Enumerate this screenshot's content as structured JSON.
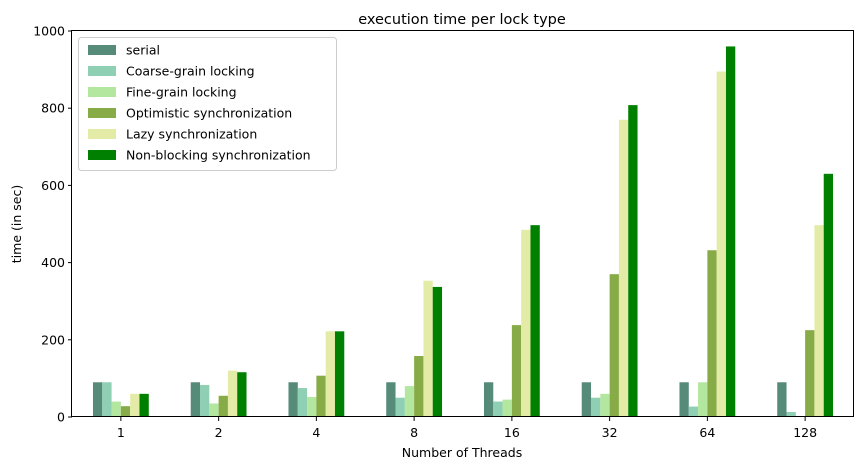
{
  "chart_data": {
    "type": "bar",
    "title": "execution time per lock type",
    "xlabel": "Number of Threads",
    "ylabel": "time (in sec)",
    "categories": [
      "1",
      "2",
      "4",
      "8",
      "16",
      "32",
      "64",
      "128"
    ],
    "ylim": [
      0,
      1000
    ],
    "yticks": [
      0,
      200,
      400,
      600,
      800,
      1000
    ],
    "grid": false,
    "legend_position": "top-left",
    "series": [
      {
        "name": "serial",
        "color": "#568b7a",
        "values": [
          90,
          90,
          90,
          90,
          90,
          90,
          90,
          90
        ]
      },
      {
        "name": "Coarse-grain locking",
        "color": "#8fcfb4",
        "values": [
          90,
          83,
          75,
          50,
          40,
          50,
          27,
          13
        ]
      },
      {
        "name": "Fine-grain locking",
        "color": "#b3e69e",
        "values": [
          40,
          35,
          52,
          80,
          45,
          60,
          90,
          0
        ]
      },
      {
        "name": "Optimistic synchronization",
        "color": "#87ab47",
        "values": [
          28,
          55,
          107,
          158,
          238,
          370,
          432,
          225
        ]
      },
      {
        "name": "Lazy synchronization",
        "color": "#e3eba6",
        "values": [
          60,
          120,
          222,
          353,
          485,
          770,
          895,
          497
        ]
      },
      {
        "name": "Non-blocking synchronization",
        "color": "#008000",
        "values": [
          60,
          116,
          222,
          337,
          497,
          808,
          960,
          630
        ]
      }
    ]
  }
}
